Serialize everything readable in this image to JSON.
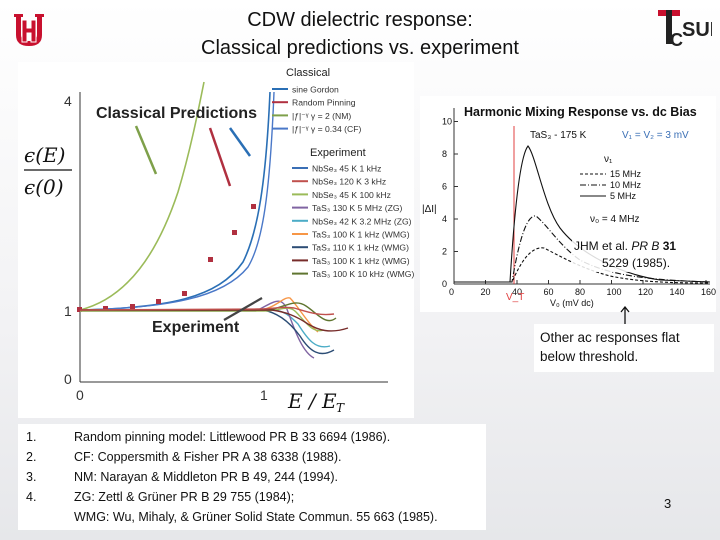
{
  "slide": {
    "title_line1": "CDW dielectric response:",
    "title_line2": "Classical predictions vs. experiment",
    "page_number": "3",
    "logo_left_text": "UH",
    "logo_right_text": "TcSUH"
  },
  "left_plot": {
    "ylabel_num": "ϵ(E)",
    "ylabel_den": "ϵ(0)",
    "xlabel": "E / E",
    "xlabel_sub": "T",
    "ytick_0": "0",
    "ytick_1": "1",
    "ytick_4": "4",
    "xtick_0": "0",
    "xtick_1": "1",
    "annot_classical": "Classical Predictions",
    "annot_experiment": "Experiment",
    "legend_classical_header": "Classical",
    "legend_classical": [
      {
        "label": "sine Gordon",
        "color": "#2a6fb5"
      },
      {
        "label": "Random Pinning",
        "color": "#b03040"
      },
      {
        "label": "|ƒ|⁻ᵞ  γ = 2 (NM)",
        "color": "#7ea04a"
      },
      {
        "label": "|ƒ|⁻ᵞ  γ = 0.34 (CF)",
        "color": "#4a78c8"
      }
    ],
    "legend_experiment_header": "Experiment",
    "legend_experiment": [
      {
        "label": "NbSe₃  45 K  1 kHz",
        "color": "#3a6fb5"
      },
      {
        "label": "NbSe₃  120 K  3 kHz",
        "color": "#c0504d"
      },
      {
        "label": "NbSe₃  45 K  100 kHz",
        "color": "#9bbb59"
      },
      {
        "label": "TaS₃  130 K  5 MHz (ZG)",
        "color": "#8064a2"
      },
      {
        "label": "NbSe₃  42 K  3.2 MHz (ZG)",
        "color": "#4bacc6"
      },
      {
        "label": "TaS₃  100 K  1 kHz (WMG)",
        "color": "#f79646"
      },
      {
        "label": "TaS₃  110 K  1 kHz (WMG)",
        "color": "#2c4d75"
      },
      {
        "label": "TaS₃  100 K  1 kHz (WMG)",
        "color": "#772c2a"
      },
      {
        "label": "TaS₃  100 K  10 kHz (WMG)",
        "color": "#5f7530"
      }
    ]
  },
  "right_plot": {
    "title": "Harmonic Mixing Response vs. dc Bias",
    "sample": "TaS₃ - 175 K",
    "v_eq": "V₁ = V₂ = 3 mV",
    "nu1_label": "ν₁",
    "freq_labels": [
      "15 MHz",
      "10 MHz",
      "5 MHz"
    ],
    "nu0_label": "ν₀ = 4 MHz",
    "ylabel": "|ΔI|",
    "xlabel": "V₀   (mV dc)",
    "vt_label": "V_T",
    "yticks": [
      "0",
      "2",
      "4",
      "6",
      "8",
      "10"
    ],
    "xticks": [
      "0",
      "20",
      "40",
      "60",
      "80",
      "100",
      "120",
      "140",
      "160"
    ]
  },
  "citation": {
    "line1": "JHM et al. ",
    "journal": "PR B",
    "vol": " 31",
    "line2": "5229 (1985)."
  },
  "note": {
    "text": "Other ac responses flat below threshold."
  },
  "references": [
    {
      "num": "1.",
      "text": "Random pinning model: Littlewood PR B 33 6694 (1986)."
    },
    {
      "num": "2.",
      "text": "CF: Coppersmith & Fisher  PR A 38 6338 (1988)."
    },
    {
      "num": "3.",
      "text": "NM: Narayan & Middleton PR B 49, 244 (1994)."
    },
    {
      "num": "4.",
      "text": "ZG:  Zettl & Grüner PR B 29 755 (1984);"
    },
    {
      "num": "",
      "text": "WMG: Wu, Mihaly, & Grüner  Solid State Commun. 55 663 (1985)."
    }
  ]
}
